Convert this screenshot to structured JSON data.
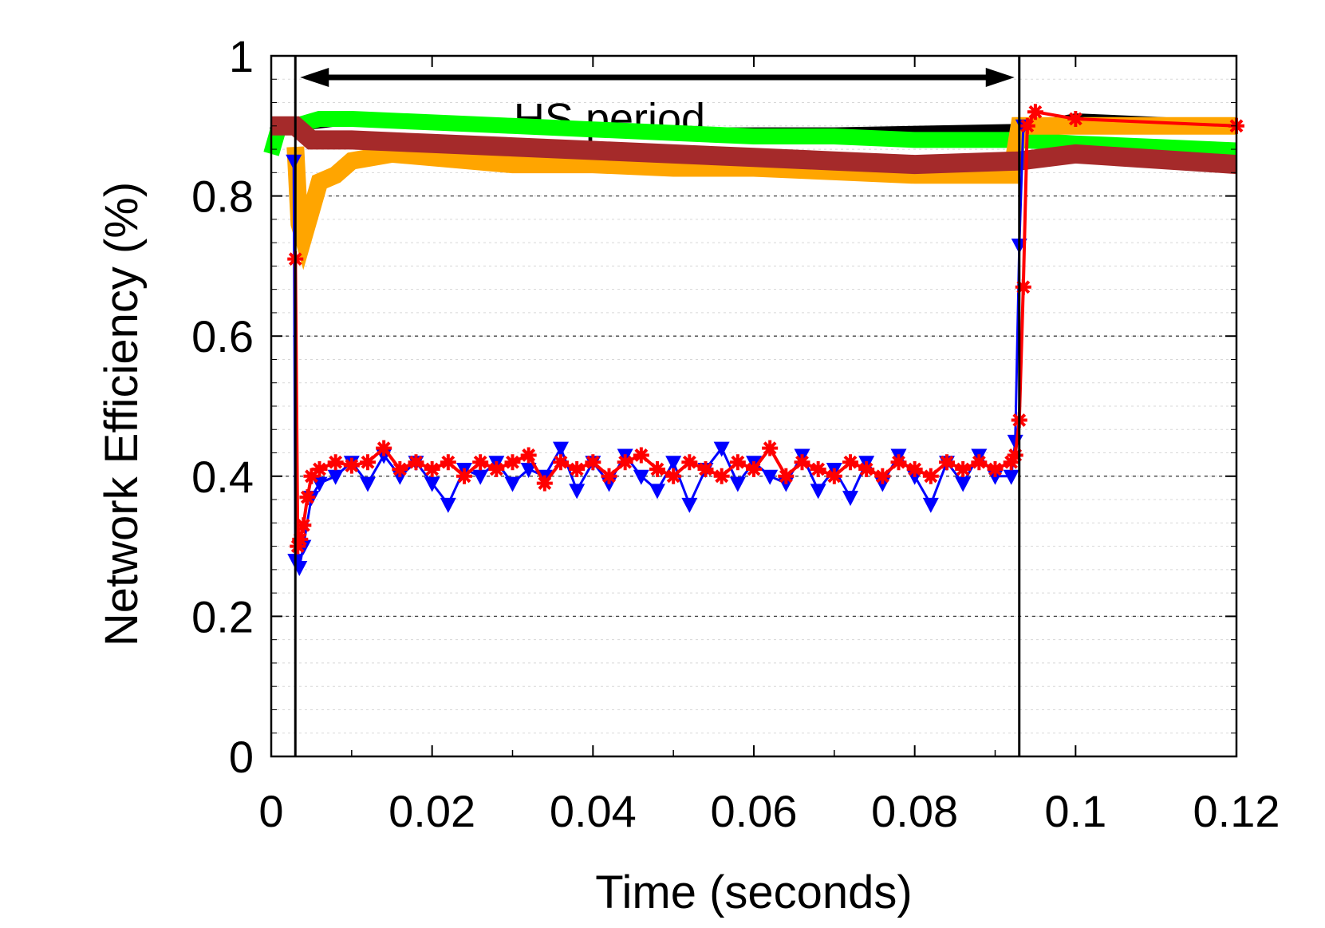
{
  "chart_data": {
    "type": "line",
    "xlabel": "Time (seconds)",
    "ylabel": "Network Efficiency (%)",
    "xlim": [
      0,
      0.12
    ],
    "ylim": [
      0,
      1
    ],
    "x_ticks": [
      "0",
      "0.02",
      "0.04",
      "0.06",
      "0.08",
      "0.1",
      "0.12"
    ],
    "y_ticks": [
      "0",
      "0.2",
      "0.4",
      "0.6",
      "0.8",
      "1"
    ],
    "grid": "horizontal dashed (major) and dotted (minor)",
    "annotation": {
      "text": "HS period",
      "x_start": 0.003,
      "x_end": 0.093,
      "vlines": [
        0.003,
        0.093
      ]
    },
    "colors": {
      "black": "#000000",
      "green": "#00ff00",
      "orange": "#ffa500",
      "brown": "#a52a2a",
      "blue": "#0000ff",
      "red": "#ff0000"
    },
    "series": [
      {
        "color": "#000000",
        "x": [
          0,
          0.003,
          0.01,
          0.03,
          0.05,
          0.07,
          0.093,
          0.1,
          0.12
        ],
        "values": [
          0.89,
          0.9,
          0.91,
          0.9,
          0.89,
          0.89,
          0.895,
          0.91,
          0.9
        ]
      },
      {
        "color": "#00ff00",
        "x": [
          0,
          0.001,
          0.003,
          0.006,
          0.01,
          0.02,
          0.03,
          0.04,
          0.05,
          0.06,
          0.07,
          0.08,
          0.093,
          0.1,
          0.11,
          0.12
        ],
        "values": [
          0.86,
          0.9,
          0.9,
          0.91,
          0.91,
          0.905,
          0.9,
          0.895,
          0.89,
          0.885,
          0.885,
          0.88,
          0.88,
          0.875,
          0.87,
          0.865
        ]
      },
      {
        "color": "#ffa500",
        "x": [
          0.003,
          0.0035,
          0.004,
          0.005,
          0.006,
          0.008,
          0.01,
          0.015,
          0.02,
          0.03,
          0.04,
          0.05,
          0.06,
          0.07,
          0.08,
          0.092,
          0.093,
          0.1,
          0.12
        ],
        "values": [
          0.87,
          0.76,
          0.74,
          0.78,
          0.82,
          0.83,
          0.85,
          0.86,
          0.855,
          0.845,
          0.845,
          0.84,
          0.84,
          0.835,
          0.83,
          0.83,
          0.9,
          0.9,
          0.9
        ]
      },
      {
        "color": "#a52a2a",
        "x": [
          0,
          0.003,
          0.005,
          0.01,
          0.02,
          0.03,
          0.04,
          0.05,
          0.06,
          0.07,
          0.08,
          0.093,
          0.1,
          0.12
        ],
        "values": [
          0.9,
          0.9,
          0.88,
          0.88,
          0.875,
          0.87,
          0.865,
          0.86,
          0.855,
          0.85,
          0.845,
          0.85,
          0.86,
          0.845
        ]
      },
      {
        "color": "#0000ff",
        "marker": "triangle-down",
        "x": [
          0.0028,
          0.003,
          0.0035,
          0.004,
          0.005,
          0.006,
          0.008,
          0.01,
          0.012,
          0.014,
          0.016,
          0.018,
          0.02,
          0.022,
          0.024,
          0.026,
          0.028,
          0.03,
          0.032,
          0.034,
          0.036,
          0.038,
          0.04,
          0.042,
          0.044,
          0.046,
          0.048,
          0.05,
          0.052,
          0.054,
          0.056,
          0.058,
          0.06,
          0.062,
          0.064,
          0.066,
          0.068,
          0.07,
          0.072,
          0.074,
          0.076,
          0.078,
          0.08,
          0.082,
          0.084,
          0.086,
          0.088,
          0.09,
          0.092,
          0.0925,
          0.093,
          0.0935
        ],
        "values": [
          0.85,
          0.28,
          0.27,
          0.3,
          0.37,
          0.39,
          0.4,
          0.42,
          0.39,
          0.43,
          0.4,
          0.42,
          0.39,
          0.36,
          0.41,
          0.4,
          0.42,
          0.39,
          0.41,
          0.4,
          0.44,
          0.38,
          0.42,
          0.39,
          0.43,
          0.4,
          0.38,
          0.42,
          0.36,
          0.41,
          0.44,
          0.39,
          0.42,
          0.4,
          0.39,
          0.43,
          0.38,
          0.41,
          0.37,
          0.42,
          0.39,
          0.43,
          0.4,
          0.36,
          0.42,
          0.39,
          0.43,
          0.4,
          0.4,
          0.45,
          0.73,
          0.9
        ]
      },
      {
        "color": "#ff0000",
        "marker": "asterisk",
        "x": [
          0.003,
          0.0033,
          0.0036,
          0.004,
          0.0045,
          0.005,
          0.006,
          0.008,
          0.01,
          0.012,
          0.014,
          0.016,
          0.018,
          0.02,
          0.022,
          0.024,
          0.026,
          0.028,
          0.03,
          0.032,
          0.034,
          0.036,
          0.038,
          0.04,
          0.042,
          0.044,
          0.046,
          0.048,
          0.05,
          0.052,
          0.054,
          0.056,
          0.058,
          0.06,
          0.062,
          0.064,
          0.066,
          0.068,
          0.07,
          0.072,
          0.074,
          0.076,
          0.078,
          0.08,
          0.082,
          0.084,
          0.086,
          0.088,
          0.09,
          0.092,
          0.0925,
          0.093,
          0.0935,
          0.094,
          0.095,
          0.1,
          0.12
        ],
        "values": [
          0.71,
          0.3,
          0.31,
          0.33,
          0.37,
          0.4,
          0.41,
          0.42,
          0.415,
          0.42,
          0.44,
          0.41,
          0.42,
          0.41,
          0.42,
          0.4,
          0.42,
          0.41,
          0.42,
          0.43,
          0.39,
          0.42,
          0.41,
          0.42,
          0.4,
          0.42,
          0.43,
          0.41,
          0.4,
          0.42,
          0.41,
          0.4,
          0.42,
          0.41,
          0.44,
          0.4,
          0.42,
          0.41,
          0.4,
          0.42,
          0.41,
          0.4,
          0.42,
          0.41,
          0.4,
          0.42,
          0.41,
          0.42,
          0.41,
          0.42,
          0.43,
          0.48,
          0.67,
          0.9,
          0.92,
          0.91,
          0.9
        ]
      }
    ]
  }
}
